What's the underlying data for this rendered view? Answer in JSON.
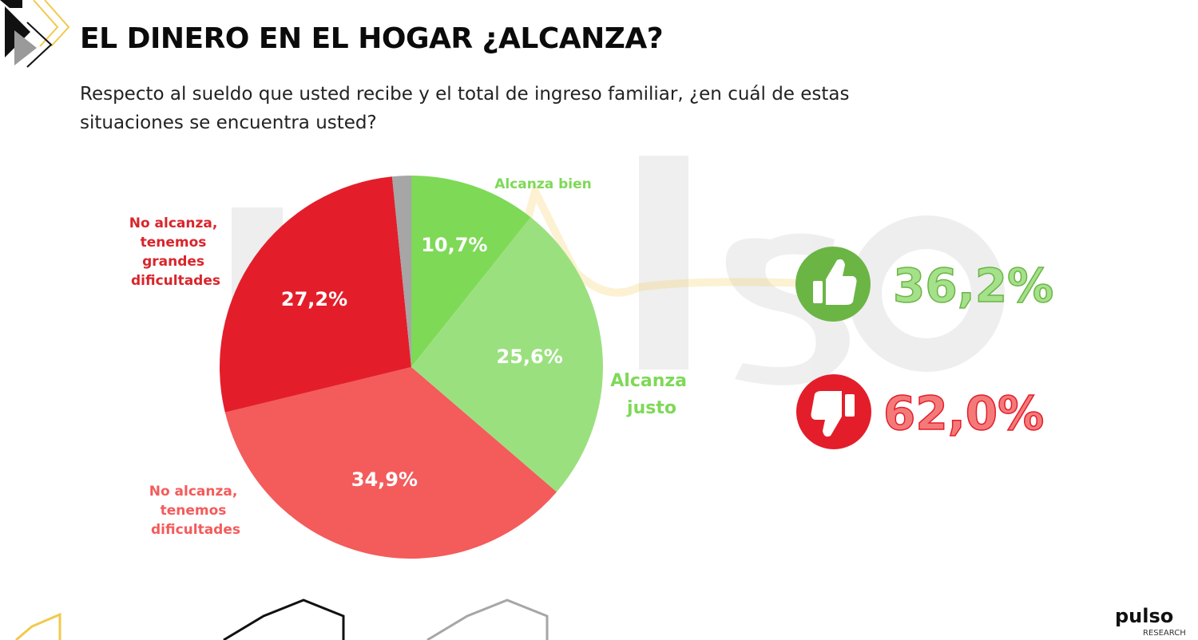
{
  "header": {
    "title": "EL DINERO EN EL HOGAR ¿ALCANZA?",
    "subtitle": "Respecto al sueldo que usted recibe y el total de ingreso familiar, ¿en cuál de estas situaciones se encuentra usted?"
  },
  "chart_data": {
    "type": "pie",
    "slices": [
      {
        "name": "Alcanza bien",
        "value": 10.7,
        "value_label": "10,7%",
        "color": "#7ed957"
      },
      {
        "name": "Alcanza justo",
        "value": 25.6,
        "value_label": "25,6%",
        "color": "#9be07f"
      },
      {
        "name": "No alcanza, tenemos dificultades",
        "value": 34.9,
        "value_label": "34,9%",
        "color": "#f45b5b"
      },
      {
        "name": "No alcanza, tenemos grandes dificultades",
        "value": 27.2,
        "value_label": "27,2%",
        "color": "#e31e2a"
      },
      {
        "name": "",
        "value": 1.6,
        "value_label": "",
        "color": "#a6a6a6"
      }
    ],
    "category_labels": {
      "alcanza_bien": [
        "Alcanza bien"
      ],
      "alcanza_justo": [
        "Alcanza",
        "justo"
      ],
      "no_alcanza_dificultades": [
        "No alcanza,",
        "tenemos",
        "dificultades"
      ],
      "no_alcanza_grandes": [
        "No alcanza,",
        "tenemos",
        "grandes",
        "dificultades"
      ]
    },
    "label_colors": {
      "positive": "#7ed957",
      "negative": "#f45b5b",
      "strong_negative": "#d9252b"
    }
  },
  "summary": {
    "positive": {
      "value": 36.2,
      "label": "36,2%",
      "icon": "thumbs-up-icon",
      "color": "#6bb545"
    },
    "negative": {
      "value": 62.0,
      "label": "62,0%",
      "icon": "thumbs-down-icon",
      "color": "#e31e2a"
    }
  },
  "watermark": {
    "text": "pulso"
  },
  "brand": {
    "logo": "pulso",
    "tagline": "RESEARCH"
  }
}
